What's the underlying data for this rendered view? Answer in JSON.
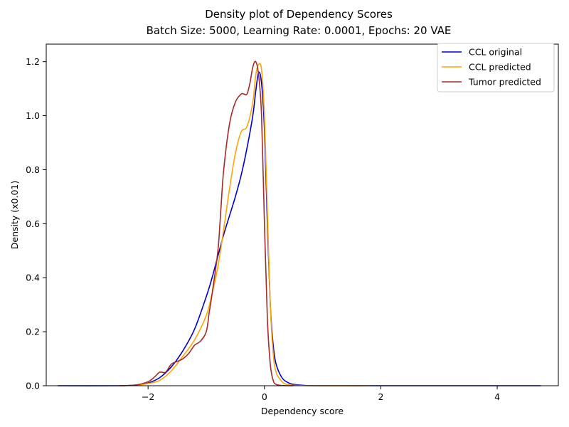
{
  "chart_data": {
    "type": "line",
    "title": "Density plot of Dependency Scores",
    "subtitle": "Batch Size: 5000, Learning Rate: 0.0001, Epochs: 20 VAE",
    "xlabel": "Dependency score",
    "ylabel": "Density (x0.01)",
    "xlim": [
      -3.75,
      5.05
    ],
    "ylim": [
      0,
      1.265
    ],
    "xticks": [
      -2,
      0,
      2,
      4
    ],
    "xtick_labels": [
      "−2",
      "0",
      "2",
      "4"
    ],
    "yticks": [
      0.0,
      0.2,
      0.4,
      0.6,
      0.8,
      1.0,
      1.2
    ],
    "ytick_labels": [
      "0.0",
      "0.2",
      "0.4",
      "0.6",
      "0.8",
      "1.0",
      "1.2"
    ],
    "grid": false,
    "legend_position": "top-right",
    "series": [
      {
        "name": "CCL original",
        "color": "#0000cc",
        "x": [
          -3.55,
          -2.5,
          -2.2,
          -2.0,
          -1.8,
          -1.6,
          -1.4,
          -1.2,
          -1.0,
          -0.9,
          -0.8,
          -0.7,
          -0.6,
          -0.5,
          -0.4,
          -0.3,
          -0.2,
          -0.15,
          -0.1,
          -0.05,
          0.0,
          0.05,
          0.1,
          0.15,
          0.2,
          0.3,
          0.4,
          0.5,
          0.7,
          1.0,
          2.0,
          3.0,
          4.0,
          4.75
        ],
        "y": [
          0.0,
          0.0,
          0.003,
          0.01,
          0.03,
          0.07,
          0.13,
          0.21,
          0.33,
          0.4,
          0.48,
          0.56,
          0.63,
          0.7,
          0.78,
          0.88,
          1.0,
          1.09,
          1.16,
          1.12,
          0.95,
          0.6,
          0.3,
          0.15,
          0.08,
          0.03,
          0.012,
          0.005,
          0.001,
          0.0,
          0.0,
          0.0,
          0.0,
          0.0
        ]
      },
      {
        "name": "CCL predicted",
        "color": "#ffa500",
        "x": [
          -2.5,
          -2.2,
          -2.0,
          -1.8,
          -1.6,
          -1.4,
          -1.2,
          -1.0,
          -0.9,
          -0.8,
          -0.7,
          -0.6,
          -0.5,
          -0.4,
          -0.3,
          -0.2,
          -0.15,
          -0.1,
          -0.05,
          0.0,
          0.05,
          0.1,
          0.15,
          0.2,
          0.3,
          0.4,
          0.6,
          1.0,
          1.8
        ],
        "y": [
          0.0,
          0.002,
          0.008,
          0.02,
          0.055,
          0.11,
          0.17,
          0.26,
          0.34,
          0.44,
          0.58,
          0.73,
          0.86,
          0.94,
          0.96,
          1.05,
          1.15,
          1.19,
          1.17,
          1.0,
          0.65,
          0.3,
          0.12,
          0.05,
          0.015,
          0.004,
          0.001,
          0.0,
          0.0
        ]
      },
      {
        "name": "Tumor predicted",
        "color": "#a52a2a",
        "x": [
          -2.5,
          -2.2,
          -2.0,
          -1.9,
          -1.8,
          -1.7,
          -1.6,
          -1.5,
          -1.4,
          -1.3,
          -1.2,
          -1.1,
          -1.0,
          -0.95,
          -0.9,
          -0.8,
          -0.75,
          -0.7,
          -0.6,
          -0.5,
          -0.4,
          -0.35,
          -0.3,
          -0.25,
          -0.2,
          -0.15,
          -0.1,
          -0.05,
          0.0,
          0.05,
          0.1,
          0.15,
          0.2,
          0.3,
          0.5
        ],
        "y": [
          0.0,
          0.003,
          0.015,
          0.03,
          0.05,
          0.05,
          0.08,
          0.09,
          0.1,
          0.12,
          0.15,
          0.165,
          0.2,
          0.27,
          0.34,
          0.5,
          0.65,
          0.8,
          0.97,
          1.05,
          1.08,
          1.08,
          1.08,
          1.12,
          1.18,
          1.2,
          1.15,
          1.0,
          0.6,
          0.25,
          0.08,
          0.02,
          0.005,
          0.001,
          0.0
        ]
      }
    ]
  }
}
